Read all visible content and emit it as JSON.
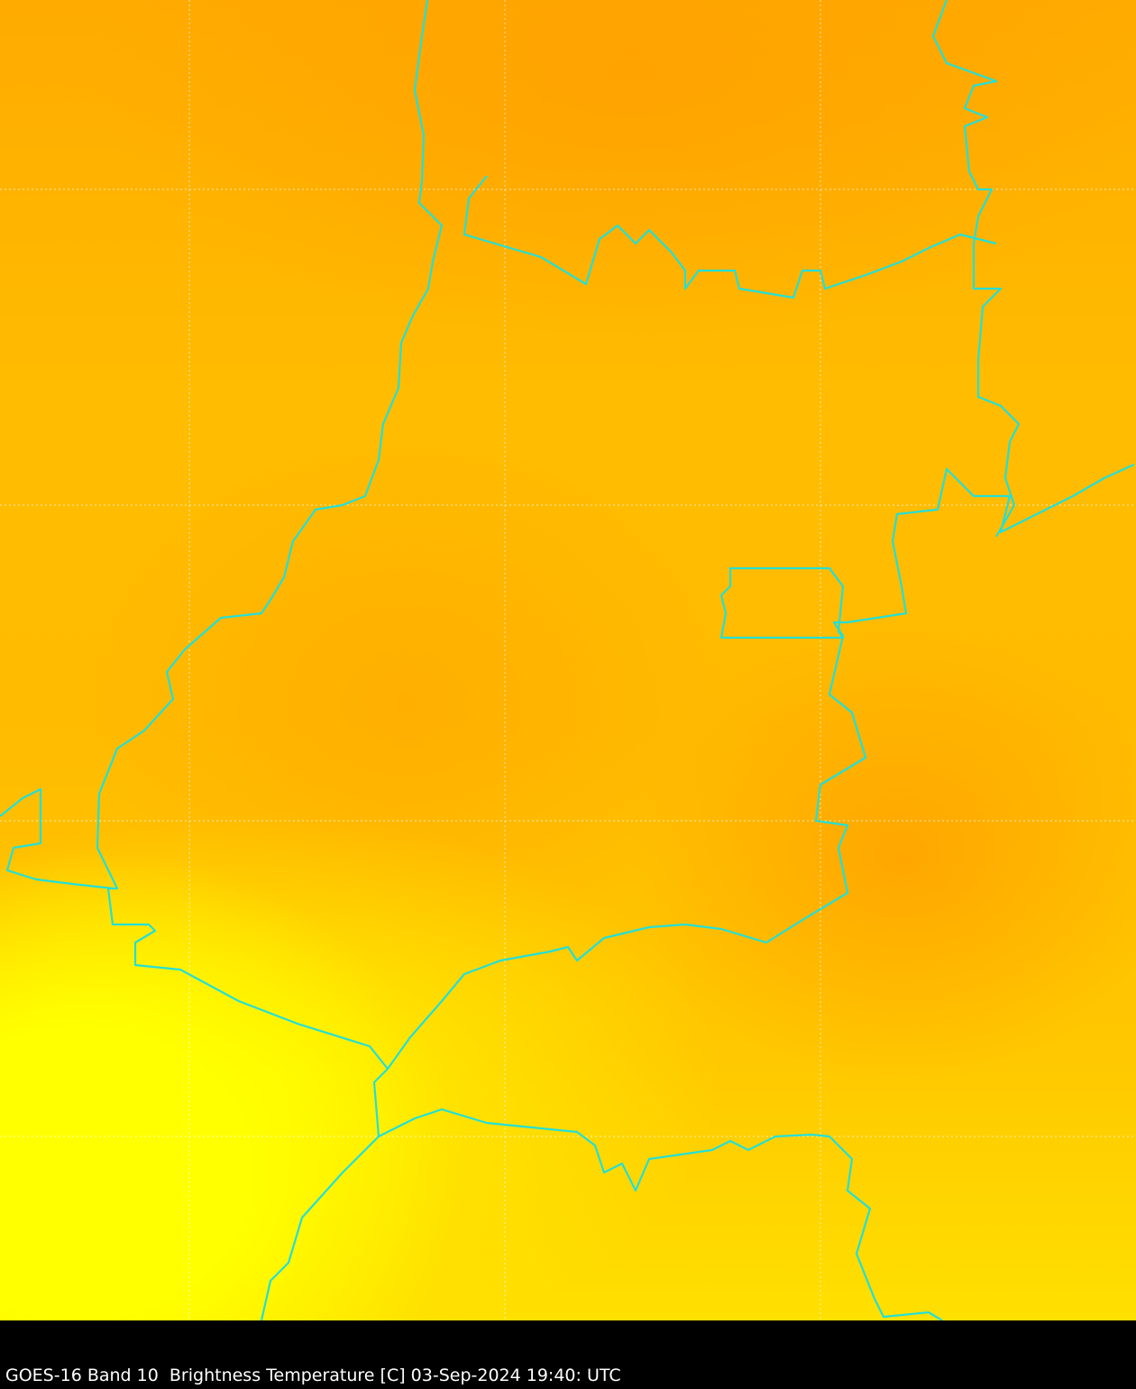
{
  "caption": "GOES-16 Band 10  Brightness Temperature [C] 03-Sep-2024 19:40: UTC",
  "colors": {
    "border": "#22e0d8",
    "warm": "#ffa500",
    "cool": "#ffff00",
    "grid": "#ffffff"
  }
}
